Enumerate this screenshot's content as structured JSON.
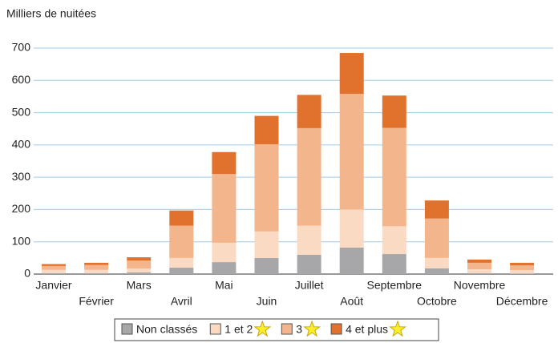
{
  "chart_data": {
    "type": "bar",
    "stacked": true,
    "y_label": "Milliers de nuitées",
    "categories": [
      "Janvier",
      "Février",
      "Mars",
      "Avril",
      "Mai",
      "Juin",
      "Juillet",
      "Août",
      "Septembre",
      "Octobre",
      "Novembre",
      "Décembre"
    ],
    "series": [
      {
        "name": "Non classés",
        "color": "#a7a7a9",
        "values": [
          3,
          3,
          5,
          20,
          37,
          50,
          60,
          82,
          62,
          18,
          3,
          2
        ]
      },
      {
        "name": "1 et 2",
        "color": "#fbdac4",
        "star": true,
        "values": [
          10,
          10,
          12,
          30,
          60,
          82,
          90,
          118,
          86,
          32,
          12,
          10
        ]
      },
      {
        "name": "3",
        "color": "#f3b58b",
        "star": true,
        "values": [
          12,
          15,
          25,
          100,
          213,
          270,
          302,
          358,
          305,
          122,
          20,
          15
        ]
      },
      {
        "name": "4 et plus",
        "color": "#e1722e",
        "star": true,
        "values": [
          6,
          7,
          10,
          47,
          68,
          88,
          103,
          127,
          100,
          56,
          10,
          8
        ]
      }
    ],
    "ylim": [
      0,
      700
    ],
    "yticks": [
      0,
      100,
      200,
      300,
      400,
      500,
      600,
      700
    ],
    "grid": true
  }
}
